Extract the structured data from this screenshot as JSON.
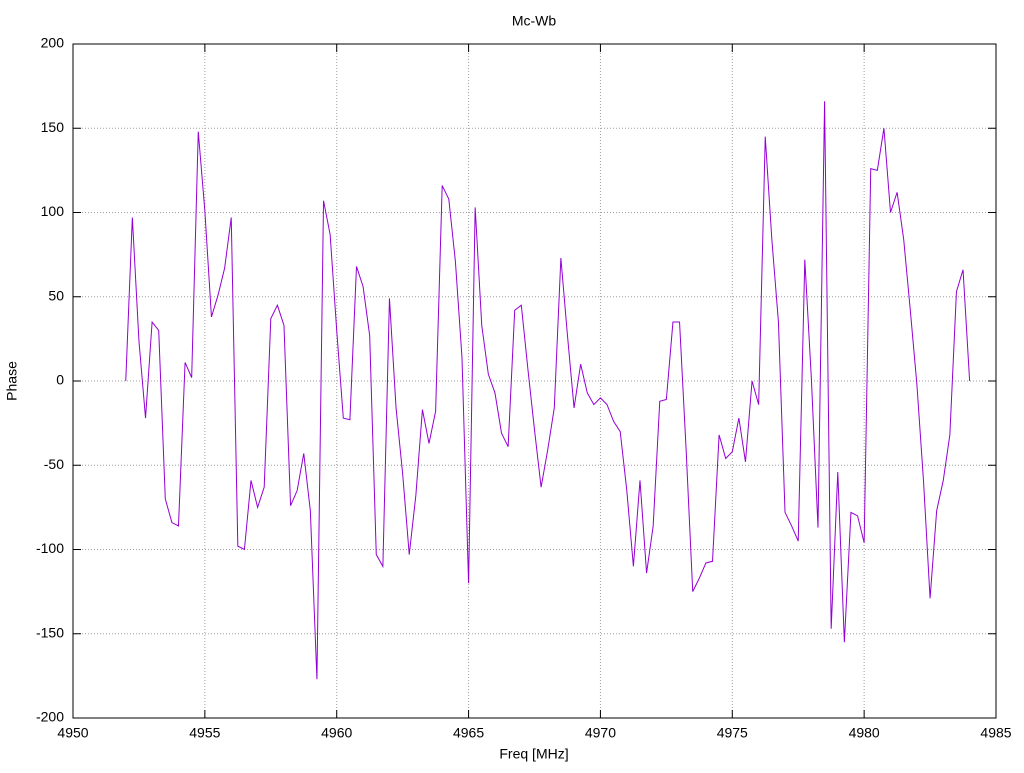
{
  "chart_data": {
    "type": "line",
    "title": "Mc-Wb",
    "xlabel": "Freq [MHz]",
    "ylabel": "Phase",
    "x": [
      4952,
      4952.25,
      4952.5,
      4952.75,
      4953,
      4953.25,
      4953.5,
      4953.75,
      4954,
      4954.25,
      4954.5,
      4954.75,
      4955,
      4955.25,
      4955.5,
      4955.75,
      4956,
      4956.25,
      4956.5,
      4956.75,
      4957,
      4957.25,
      4957.5,
      4957.75,
      4958,
      4958.25,
      4958.5,
      4958.75,
      4959,
      4959.25,
      4959.5,
      4959.75,
      4960,
      4960.25,
      4960.5,
      4960.75,
      4961,
      4961.25,
      4961.5,
      4961.75,
      4962,
      4962.25,
      4962.5,
      4962.75,
      4963,
      4963.25,
      4963.5,
      4963.75,
      4964,
      4964.25,
      4964.5,
      4964.75,
      4965,
      4965.25,
      4965.5,
      4965.75,
      4966,
      4966.25,
      4966.5,
      4966.75,
      4967,
      4967.25,
      4967.5,
      4967.75,
      4968,
      4968.25,
      4968.5,
      4968.75,
      4969,
      4969.25,
      4969.5,
      4969.75,
      4970,
      4970.25,
      4970.5,
      4970.75,
      4971,
      4971.25,
      4971.5,
      4971.75,
      4972,
      4972.25,
      4972.5,
      4972.75,
      4973,
      4973.25,
      4973.5,
      4973.75,
      4974,
      4974.25,
      4974.5,
      4974.75,
      4975,
      4975.25,
      4975.5,
      4975.75,
      4976,
      4976.25,
      4976.5,
      4976.75,
      4977,
      4977.25,
      4977.5,
      4977.75,
      4978,
      4978.25,
      4978.5,
      4978.75,
      4979,
      4979.25,
      4979.5,
      4979.75,
      4980,
      4980.25,
      4980.5,
      4980.75,
      4981,
      4981.25,
      4981.5,
      4981.75,
      4982,
      4982.25,
      4982.5,
      4982.75,
      4983,
      4983.25,
      4983.5,
      4983.75,
      4984
    ],
    "series": [
      {
        "color": "#9400d3",
        "values": [
          0,
          97,
          24,
          -22,
          35,
          30,
          -70,
          -84,
          -86,
          11,
          2,
          148,
          101,
          38,
          51,
          67,
          97,
          -98,
          -100,
          -59,
          -75,
          -63,
          37,
          45,
          33,
          -74,
          -65,
          -43,
          -77,
          -177,
          107,
          87,
          30,
          -22,
          -23,
          68,
          56,
          27,
          -103,
          -110,
          49,
          -16,
          -55,
          -103,
          -68,
          -17,
          -37,
          -18,
          116,
          108,
          71,
          14,
          -120,
          103,
          33,
          4,
          -7,
          -31,
          -39,
          42,
          45,
          7,
          -29,
          -63,
          -41,
          -16,
          73,
          27,
          -16,
          10,
          -7,
          -14,
          -10,
          -14,
          -24,
          -30,
          -65,
          -110,
          -59,
          -114,
          -86,
          -12,
          -11,
          35,
          35,
          -41,
          -125,
          -117,
          -108,
          -107,
          -32,
          -46,
          -42,
          -22,
          -48,
          0,
          -14,
          145,
          84,
          35,
          -78,
          -86,
          -95,
          72,
          1,
          -87,
          166,
          -147,
          -54,
          -155,
          -78,
          -80,
          -96,
          126,
          125,
          150,
          100,
          112,
          84,
          42,
          -2,
          -59,
          -129,
          -77,
          -59,
          -32,
          53,
          66,
          0
        ]
      }
    ],
    "xlim": [
      4950,
      4985
    ],
    "xticks": [
      4950,
      4955,
      4960,
      4965,
      4970,
      4975,
      4980,
      4985
    ],
    "ylim": [
      -200,
      200
    ],
    "yticks": [
      -200,
      -150,
      -100,
      -50,
      0,
      50,
      100,
      150,
      200
    ],
    "grid": true
  }
}
